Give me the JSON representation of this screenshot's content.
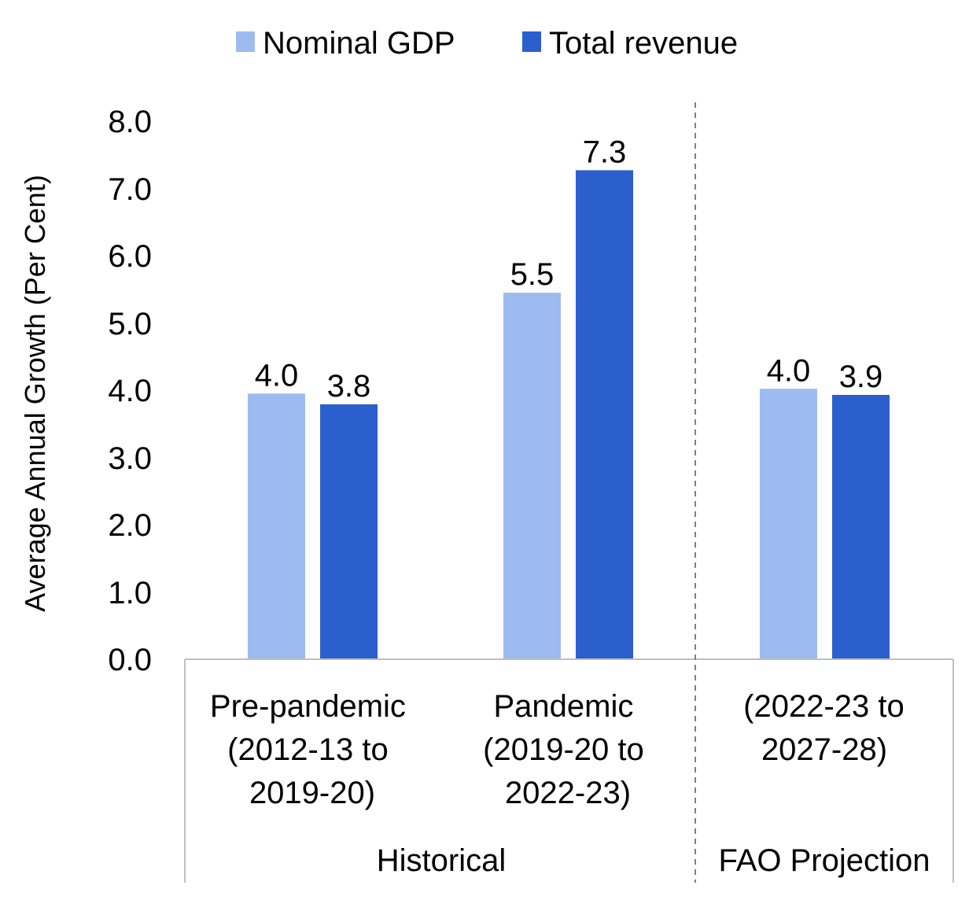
{
  "chart_data": {
    "type": "bar",
    "ylabel": "Average Annual Growth (Per Cent)",
    "ylim": [
      0,
      8
    ],
    "yticks": [
      "0.0",
      "1.0",
      "2.0",
      "3.0",
      "4.0",
      "5.0",
      "6.0",
      "7.0",
      "8.0"
    ],
    "grid": false,
    "legend": "top-center",
    "categories": [
      {
        "lines": [
          "Pre-pandemic",
          "(2012-13 to",
          "2019-20)"
        ]
      },
      {
        "lines": [
          "Pandemic",
          "(2019-20 to",
          "2022-23)"
        ]
      },
      {
        "lines": [
          "(2022-23 to",
          "2027-28)"
        ]
      }
    ],
    "groups": [
      {
        "label": "Historical",
        "categories": [
          0,
          1
        ]
      },
      {
        "label": "FAO Projection",
        "categories": [
          2
        ]
      }
    ],
    "series": [
      {
        "name": "Nominal GDP",
        "color": "#9dbbf0",
        "values": [
          3.95,
          5.45,
          4.02
        ],
        "labels": [
          "4.0",
          "5.5",
          "4.0"
        ]
      },
      {
        "name": "Total revenue",
        "color": "#2b5fce",
        "values": [
          3.79,
          7.27,
          3.93
        ],
        "labels": [
          "3.8",
          "7.3",
          "3.9"
        ]
      }
    ]
  }
}
